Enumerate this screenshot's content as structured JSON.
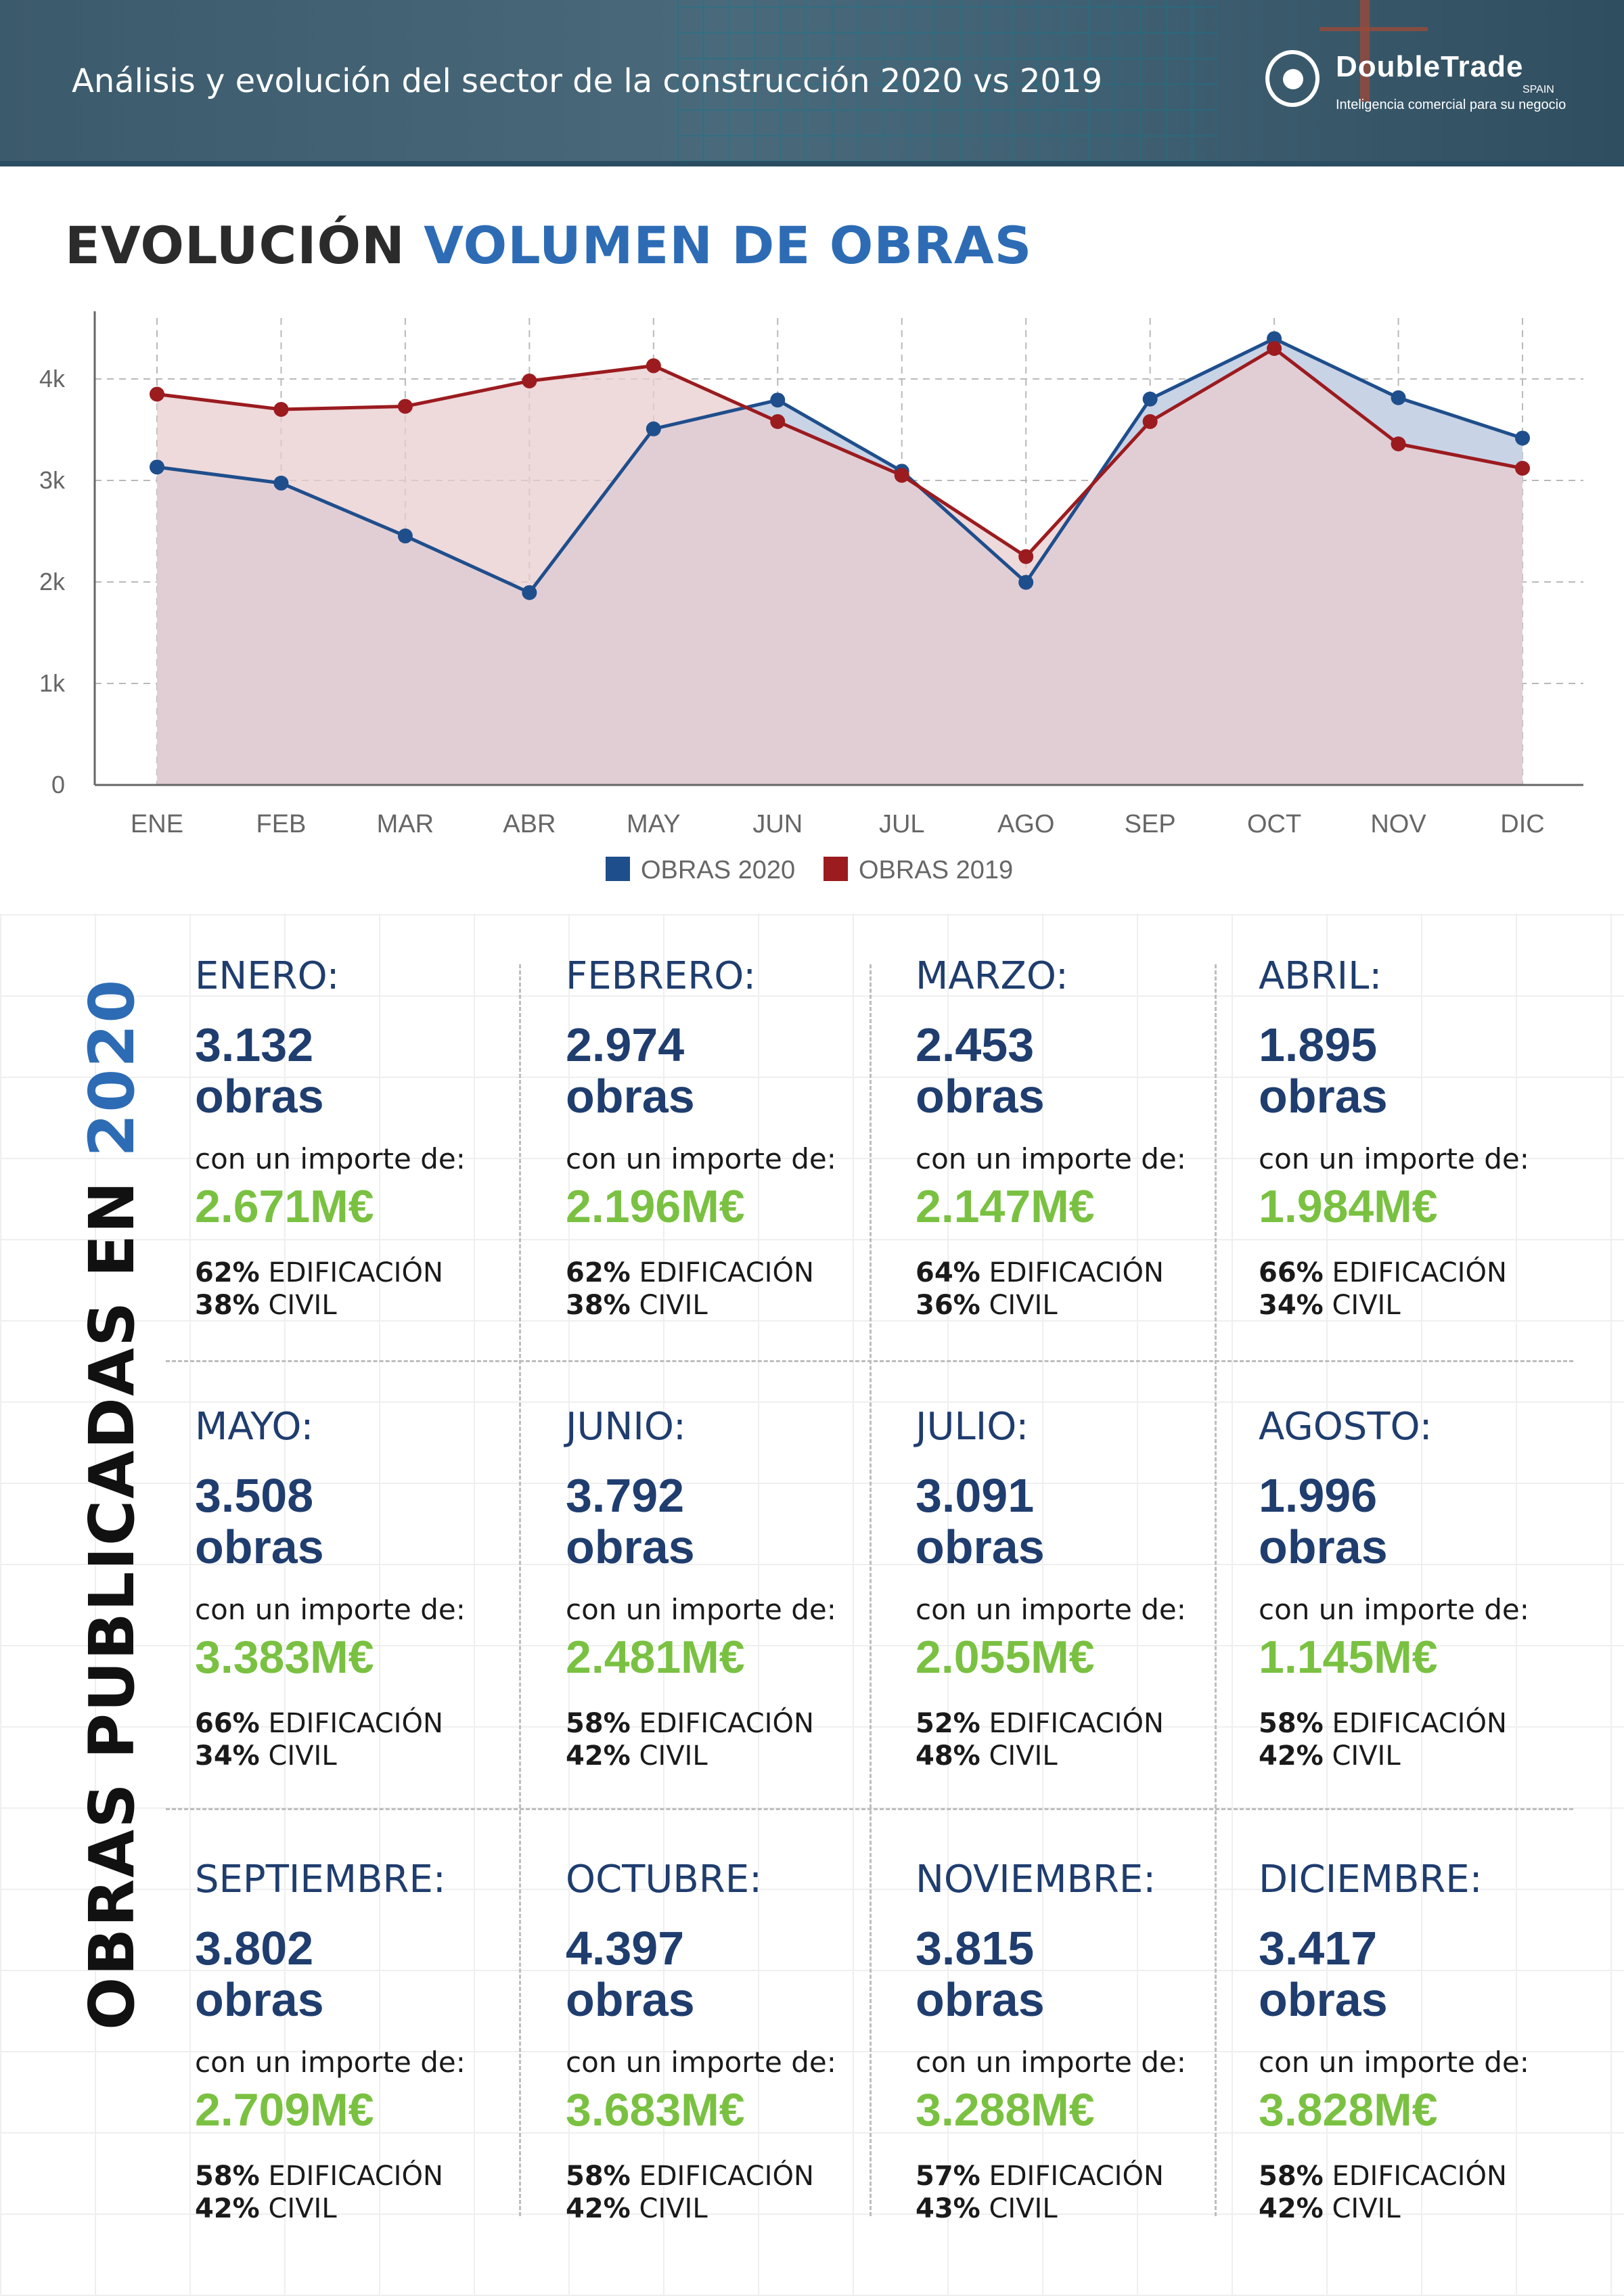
{
  "header": {
    "subtitle": "Análisis y evolución del sector de la construcción 2020 vs 2019",
    "logo_name": "DoubleTrade",
    "logo_country": "SPAIN",
    "logo_tagline": "Inteligencia comercial para su negocio"
  },
  "chart_title": {
    "part1": "EVOLUCIÓN",
    "part2": "VOLUMEN DE OBRAS"
  },
  "chart_data": {
    "type": "area",
    "categories": [
      "ENE",
      "FEB",
      "MAR",
      "ABR",
      "MAY",
      "JUN",
      "JUL",
      "AGO",
      "SEP",
      "OCT",
      "NOV",
      "DIC"
    ],
    "ylim": [
      0,
      4600
    ],
    "yticks": [
      0,
      1000,
      2000,
      3000,
      4000
    ],
    "ytick_labels": [
      "0",
      "1k",
      "2k",
      "3k",
      "4k"
    ],
    "grid": true,
    "legend_position": "bottom-center",
    "series": [
      {
        "name": "OBRAS 2020",
        "color": "#1f4e8c",
        "fill": "#c9d3e6",
        "values": [
          3132,
          2974,
          2453,
          1895,
          3508,
          3792,
          3091,
          1996,
          3802,
          4397,
          3815,
          3417
        ]
      },
      {
        "name": "OBRAS 2019",
        "color": "#9b1b1f",
        "fill": "#e8cccf",
        "values": [
          3850,
          3700,
          3730,
          3980,
          4130,
          3580,
          3050,
          2250,
          3580,
          4300,
          3360,
          3120
        ]
      }
    ]
  },
  "side_title": {
    "text": "OBRAS PUBLICADAS EN ",
    "year": "2020"
  },
  "labels": {
    "obras": "obras",
    "importe": "con un importe de:",
    "edif": "EDIFICACIÓN",
    "civil": "CIVIL"
  },
  "months": [
    {
      "name": "ENERO:",
      "obras": "3.132",
      "importe": "2.671M€",
      "edif_pct": "62%",
      "civil_pct": "38%"
    },
    {
      "name": "FEBRERO:",
      "obras": "2.974",
      "importe": "2.196M€",
      "edif_pct": "62%",
      "civil_pct": "38%"
    },
    {
      "name": "MARZO:",
      "obras": "2.453",
      "importe": "2.147M€",
      "edif_pct": "64%",
      "civil_pct": "36%"
    },
    {
      "name": "ABRIL:",
      "obras": "1.895",
      "importe": "1.984M€",
      "edif_pct": "66%",
      "civil_pct": "34%"
    },
    {
      "name": "MAYO:",
      "obras": "3.508",
      "importe": "3.383M€",
      "edif_pct": "66%",
      "civil_pct": "34%"
    },
    {
      "name": "JUNIO:",
      "obras": "3.792",
      "importe": "2.481M€",
      "edif_pct": "58%",
      "civil_pct": "42%"
    },
    {
      "name": "JULIO:",
      "obras": "3.091",
      "importe": "2.055M€",
      "edif_pct": "52%",
      "civil_pct": "48%"
    },
    {
      "name": "AGOSTO:",
      "obras": "1.996",
      "importe": "1.145M€",
      "edif_pct": "58%",
      "civil_pct": "42%"
    },
    {
      "name": "SEPTIEMBRE:",
      "obras": "3.802",
      "importe": "2.709M€",
      "edif_pct": "58%",
      "civil_pct": "42%"
    },
    {
      "name": "OCTUBRE:",
      "obras": "4.397",
      "importe": "3.683M€",
      "edif_pct": "58%",
      "civil_pct": "42%"
    },
    {
      "name": "NOVIEMBRE:",
      "obras": "3.815",
      "importe": "3.288M€",
      "edif_pct": "57%",
      "civil_pct": "43%"
    },
    {
      "name": "DICIEMBRE:",
      "obras": "3.417",
      "importe": "3.828M€",
      "edif_pct": "58%",
      "civil_pct": "42%"
    }
  ]
}
